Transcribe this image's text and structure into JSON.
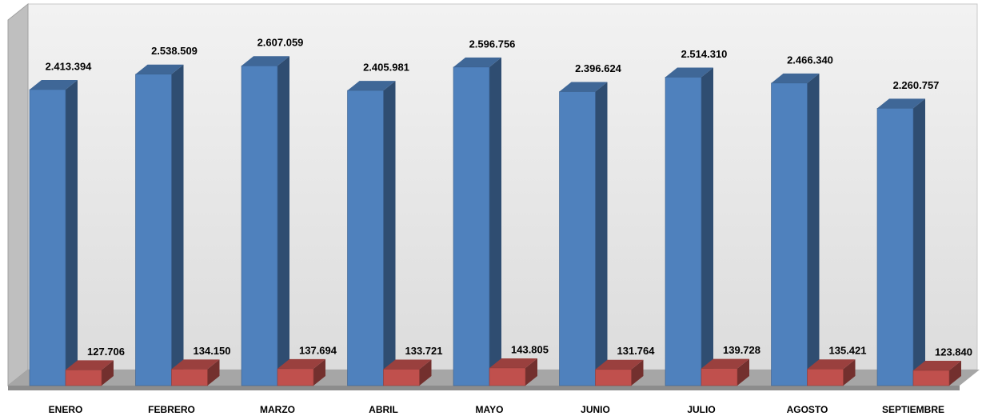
{
  "chart_data": {
    "type": "bar3d",
    "categories": [
      "ENERO",
      "FEBRERO",
      "MARZO",
      "ABRIL",
      "MAYO",
      "JUNIO",
      "JULIO",
      "AGOSTO",
      "SEPTIEMBRE"
    ],
    "series": [
      {
        "color": "#4f81bd",
        "values": [
          2413394,
          2538509,
          2607059,
          2405981,
          2596756,
          2396624,
          2514310,
          2466340,
          2260757
        ],
        "value_labels": [
          "2.413.394",
          "2.538.509",
          "2.607.059",
          "2.405.981",
          "2.596.756",
          "2.396.624",
          "2.514.310",
          "2.466.340",
          "2.260.757"
        ]
      },
      {
        "color": "#c0504d",
        "values": [
          127706,
          134150,
          137694,
          133721,
          143805,
          131764,
          139728,
          135421,
          123840
        ],
        "value_labels": [
          "127.706",
          "134.150",
          "137.694",
          "133.721",
          "143.805",
          "131.764",
          "139.728",
          "135.421",
          "123.840"
        ]
      }
    ],
    "ylim": [
      0,
      3000000
    ]
  }
}
